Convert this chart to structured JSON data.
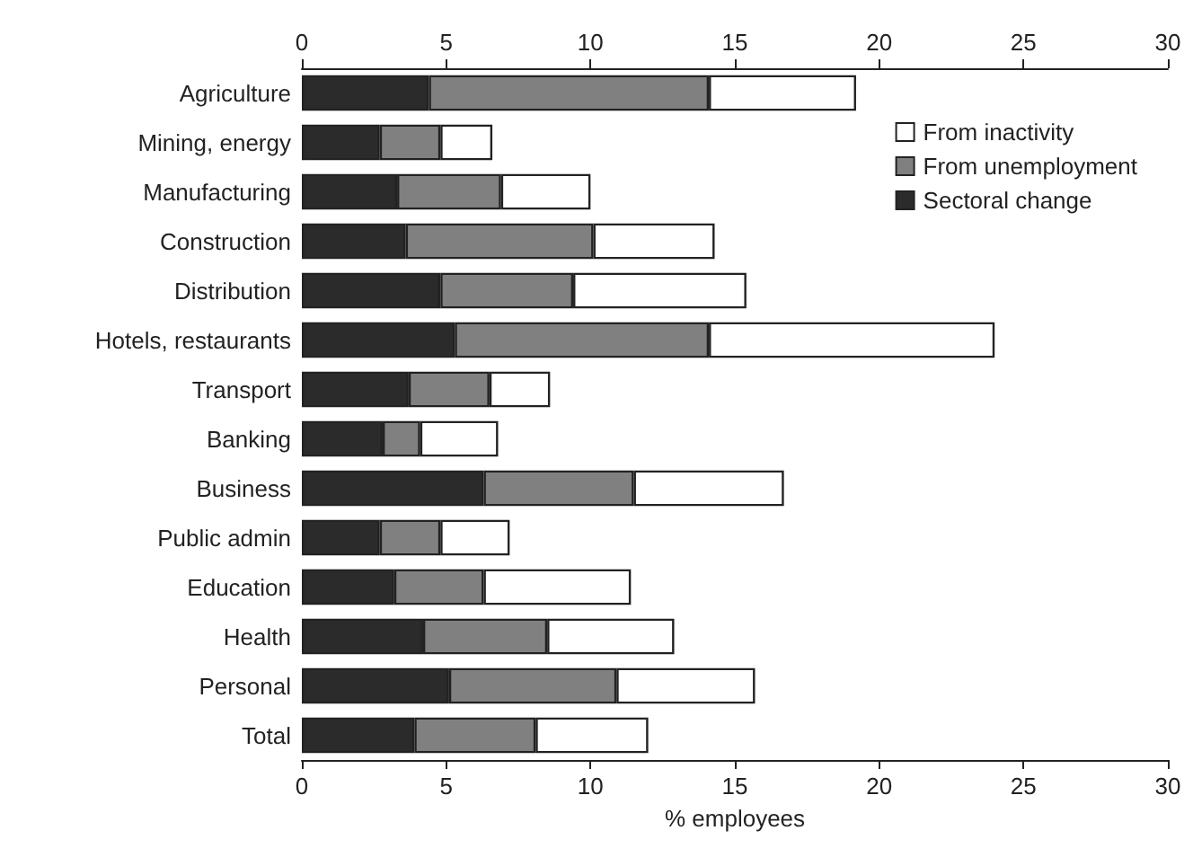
{
  "chart_data": {
    "type": "bar",
    "orientation": "horizontal",
    "stacked": true,
    "xlabel": "% employees",
    "categories": [
      "Agriculture",
      "Mining, energy",
      "Manufacturing",
      "Construction",
      "Distribution",
      "Hotels, restaurants",
      "Transport",
      "Banking",
      "Business",
      "Public admin",
      "Education",
      "Health",
      "Personal",
      "Total"
    ],
    "series": [
      {
        "name": "Sectoral change",
        "color": "#2b2b2b",
        "values": [
          4.4,
          2.7,
          3.3,
          3.6,
          4.8,
          5.3,
          3.7,
          2.8,
          6.3,
          2.7,
          3.2,
          4.2,
          5.1,
          3.9
        ]
      },
      {
        "name": "From unemployment",
        "color": "#808080",
        "values": [
          9.7,
          2.1,
          3.6,
          6.5,
          4.6,
          8.8,
          2.8,
          1.3,
          5.2,
          2.1,
          3.1,
          4.3,
          5.8,
          4.2
        ]
      },
      {
        "name": "From inactivity",
        "color": "#ffffff",
        "values": [
          5.1,
          1.8,
          3.1,
          4.2,
          6.0,
          9.9,
          2.1,
          2.7,
          5.2,
          2.4,
          5.1,
          4.4,
          4.8,
          3.9
        ]
      }
    ],
    "xlim": [
      0,
      30
    ],
    "xticks": [
      0,
      5,
      10,
      15,
      20,
      25,
      30
    ],
    "x2lim": [
      0,
      30
    ],
    "x2ticks": [
      0,
      5,
      10,
      15,
      20,
      25,
      30
    ],
    "grid": false,
    "legend": "top right"
  }
}
